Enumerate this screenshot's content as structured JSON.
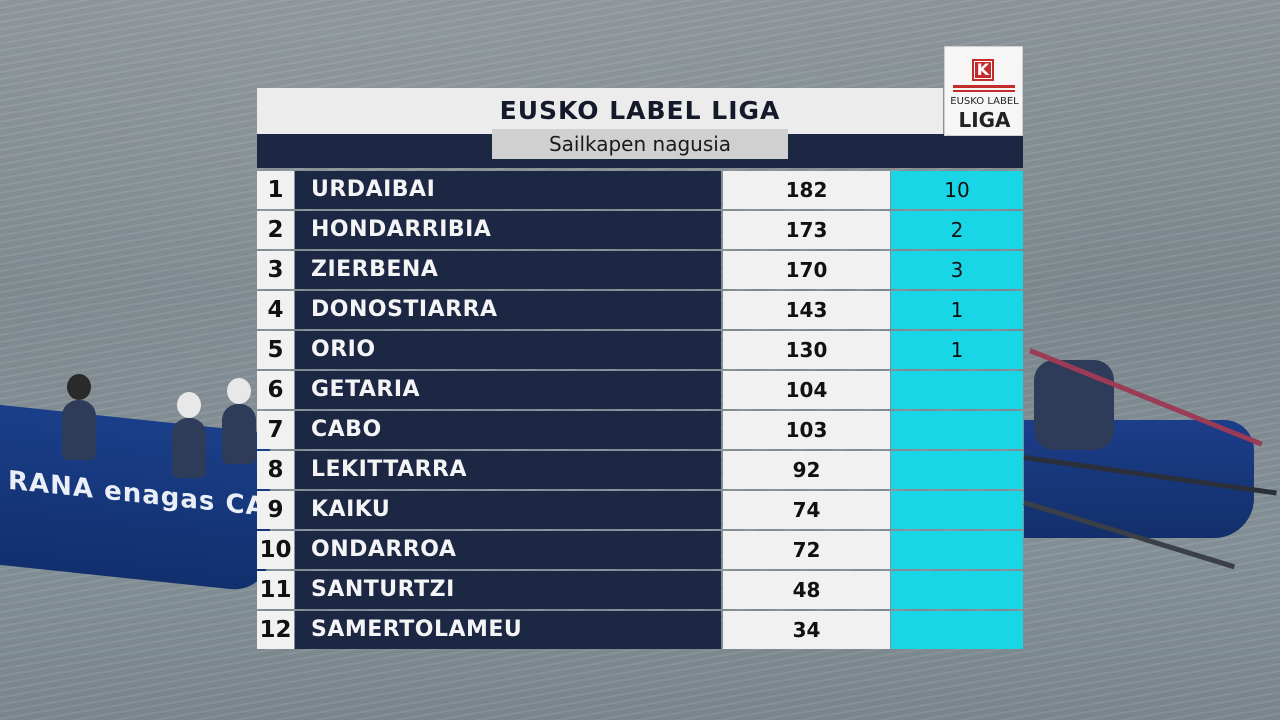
{
  "header": {
    "title": "EUSKO  LABEL  LIGA",
    "subtitle": "Sailkapen nagusia"
  },
  "logo": {
    "mark": "K",
    "line1": "EUSKO LABEL",
    "line2": "LIGA"
  },
  "background": {
    "boat_left_text": "RANA  enagas  CAM"
  },
  "colors": {
    "name_bg": "#1c2744",
    "light_bg": "#f1f1f1",
    "accent": "#19d6e6"
  },
  "standings": [
    {
      "pos": "1",
      "team": "URDAIBAI",
      "points": "182",
      "wins": "10"
    },
    {
      "pos": "2",
      "team": "HONDARRIBIA",
      "points": "173",
      "wins": "2"
    },
    {
      "pos": "3",
      "team": "ZIERBENA",
      "points": "170",
      "wins": "3"
    },
    {
      "pos": "4",
      "team": "DONOSTIARRA",
      "points": "143",
      "wins": "1"
    },
    {
      "pos": "5",
      "team": "ORIO",
      "points": "130",
      "wins": "1"
    },
    {
      "pos": "6",
      "team": "GETARIA",
      "points": "104",
      "wins": ""
    },
    {
      "pos": "7",
      "team": "CABO",
      "points": "103",
      "wins": ""
    },
    {
      "pos": "8",
      "team": "LEKITTARRA",
      "points": "92",
      "wins": ""
    },
    {
      "pos": "9",
      "team": "KAIKU",
      "points": "74",
      "wins": ""
    },
    {
      "pos": "10",
      "team": "ONDARROA",
      "points": "72",
      "wins": ""
    },
    {
      "pos": "11",
      "team": "SANTURTZI",
      "points": "48",
      "wins": ""
    },
    {
      "pos": "12",
      "team": "SAMERTOLAMEU",
      "points": "34",
      "wins": ""
    }
  ]
}
